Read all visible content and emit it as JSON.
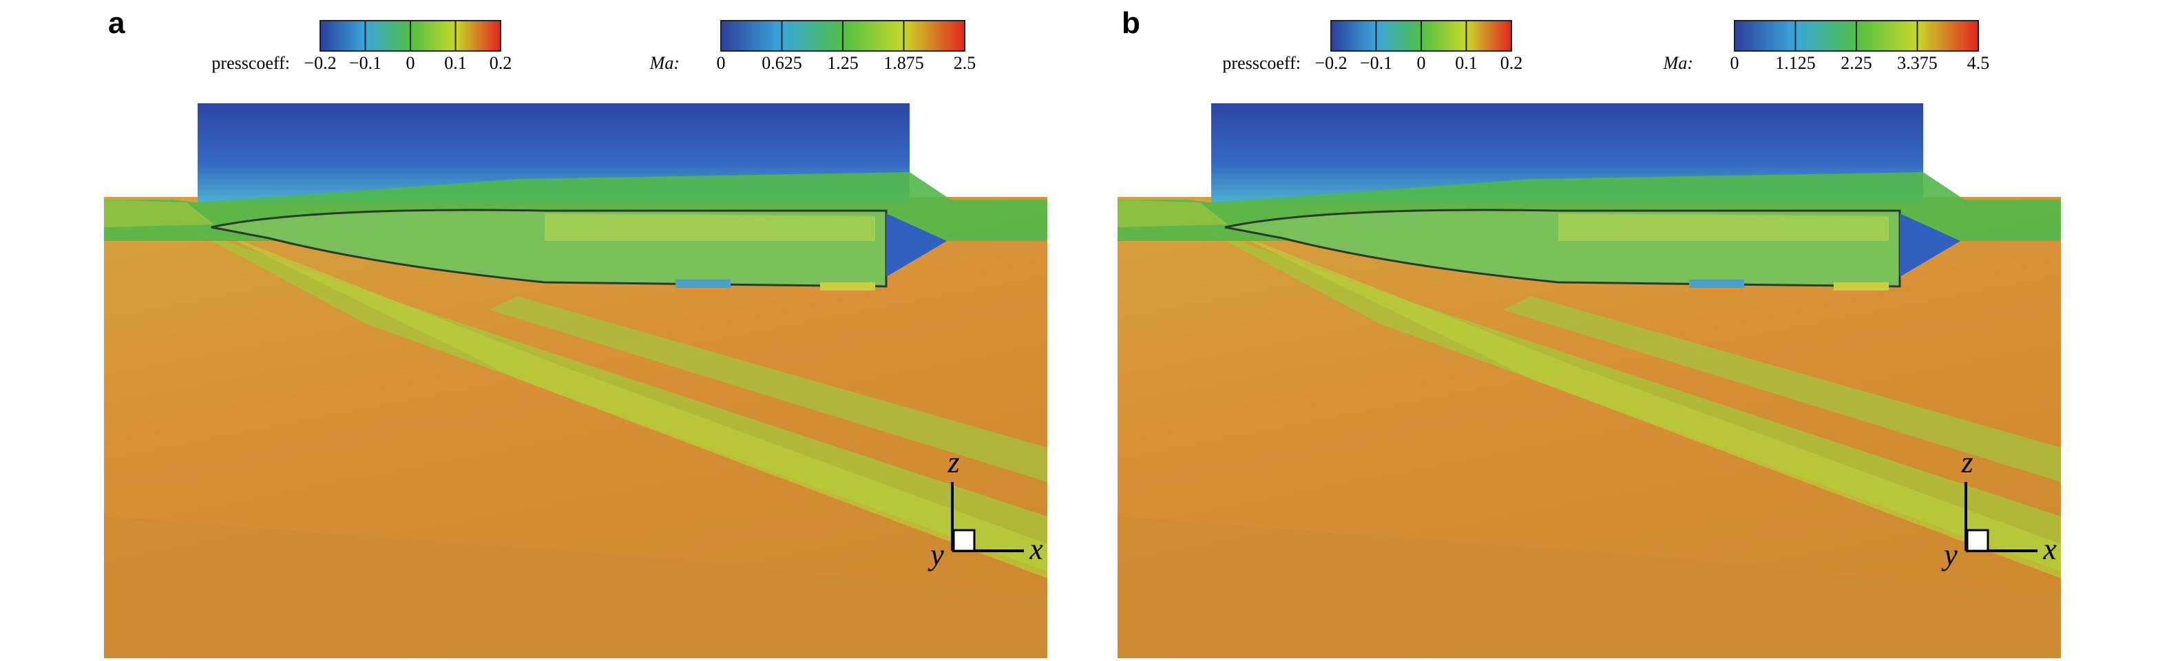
{
  "panels": [
    {
      "label": "a",
      "colorbars": [
        {
          "title": "presscoeff:",
          "lim": [
            -0.2,
            0.2
          ],
          "ticks": [
            {
              "value": -0.2,
              "label": "−0.2"
            },
            {
              "value": -0.1,
              "label": "−0.1"
            },
            0,
            0.1,
            0.2
          ]
        },
        {
          "title": "Ma:",
          "lim": [
            0,
            2.5
          ],
          "ticks": [
            0,
            0.625,
            1.25,
            1.875,
            2.5
          ]
        }
      ],
      "axes": {
        "z": "z",
        "y": "y",
        "x": "x"
      }
    },
    {
      "label": "b",
      "colorbars": [
        {
          "title": "presscoeff:",
          "lim": [
            -0.2,
            0.2
          ],
          "ticks": [
            {
              "value": -0.2,
              "label": "−0.2"
            },
            {
              "value": -0.1,
              "label": "−0.1"
            },
            0,
            0.1,
            0.2
          ]
        },
        {
          "title": "Ma:",
          "lim": [
            0,
            4.5
          ],
          "ticks": [
            0,
            1.125,
            2.25,
            3.375,
            4.5
          ]
        }
      ],
      "axes": {
        "z": "z",
        "y": "y",
        "x": "x"
      }
    }
  ]
}
